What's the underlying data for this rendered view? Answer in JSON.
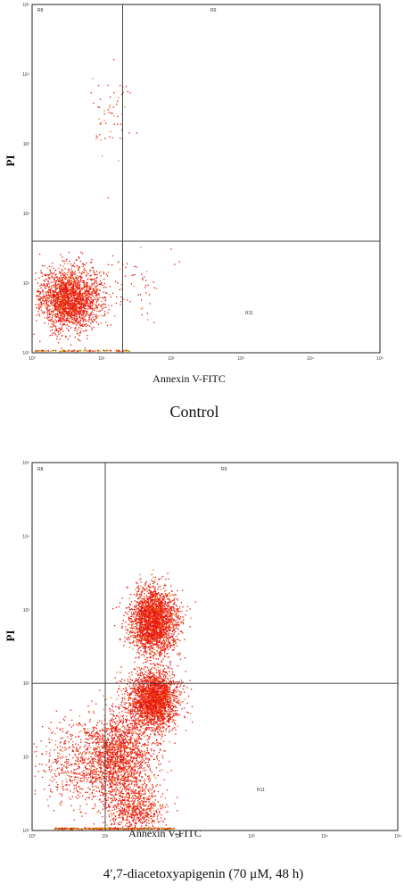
{
  "chart_data": [
    {
      "type": "scatter",
      "caption": "Control",
      "xlabel": "Annexin V-FITC",
      "ylabel": "PI",
      "x_scale": "log",
      "y_scale": "log",
      "xlim": [
        1,
        100000
      ],
      "ylim": [
        1,
        100000
      ],
      "x_ticks": [
        "10⁰",
        "10¹",
        "10²",
        "10³",
        "10⁴",
        "10⁵"
      ],
      "y_ticks": [
        "10⁰",
        "10¹",
        "10²",
        "10³",
        "10⁴",
        "10⁵"
      ],
      "gates": {
        "x": 20,
        "y": 40
      },
      "regions": [
        "R8",
        "R9",
        "R11"
      ],
      "point_color": "#e8140e",
      "clusters": [
        {
          "x": 3.5,
          "y": 6,
          "spread": [
            0.22,
            0.22
          ],
          "count": 2200
        },
        {
          "x": 12,
          "y": 2500,
          "spread": [
            0.15,
            0.3
          ],
          "count": 60
        },
        {
          "x": 30,
          "y": 12,
          "spread": [
            0.25,
            0.25
          ],
          "count": 60
        }
      ],
      "axis_events": {
        "x_from": 1,
        "x_to": 25,
        "count": 120
      }
    },
    {
      "type": "scatter",
      "caption": "4′,7-diacetoxyapigenin (70 μM, 48 h)",
      "xlabel": "Annexin V-FITC",
      "ylabel": "PI",
      "x_scale": "log",
      "y_scale": "log",
      "xlim": [
        1,
        100000
      ],
      "ylim": [
        1,
        100000
      ],
      "x_ticks": [
        "10⁰",
        "10¹",
        "10²",
        "10³",
        "10⁴",
        "10⁵"
      ],
      "y_ticks": [
        "10⁰",
        "10¹",
        "10²",
        "10³",
        "10⁴",
        "10⁵"
      ],
      "gates": {
        "x": 10,
        "y": 100
      },
      "regions": [
        "R8",
        "R9",
        "R11"
      ],
      "point_color": "#e8140e",
      "clusters": [
        {
          "x": 45,
          "y": 700,
          "spread": [
            0.16,
            0.22
          ],
          "count": 2600
        },
        {
          "x": 45,
          "y": 60,
          "spread": [
            0.17,
            0.2
          ],
          "count": 2400
        },
        {
          "x": 15,
          "y": 10,
          "spread": [
            0.25,
            0.3
          ],
          "count": 1800
        },
        {
          "x": 4,
          "y": 8,
          "spread": [
            0.3,
            0.3
          ],
          "count": 500
        },
        {
          "x": 25,
          "y": 2,
          "spread": [
            0.2,
            0.15
          ],
          "count": 600
        }
      ],
      "axis_events": {
        "x_from": 2,
        "x_to": 90,
        "count": 400
      }
    }
  ]
}
